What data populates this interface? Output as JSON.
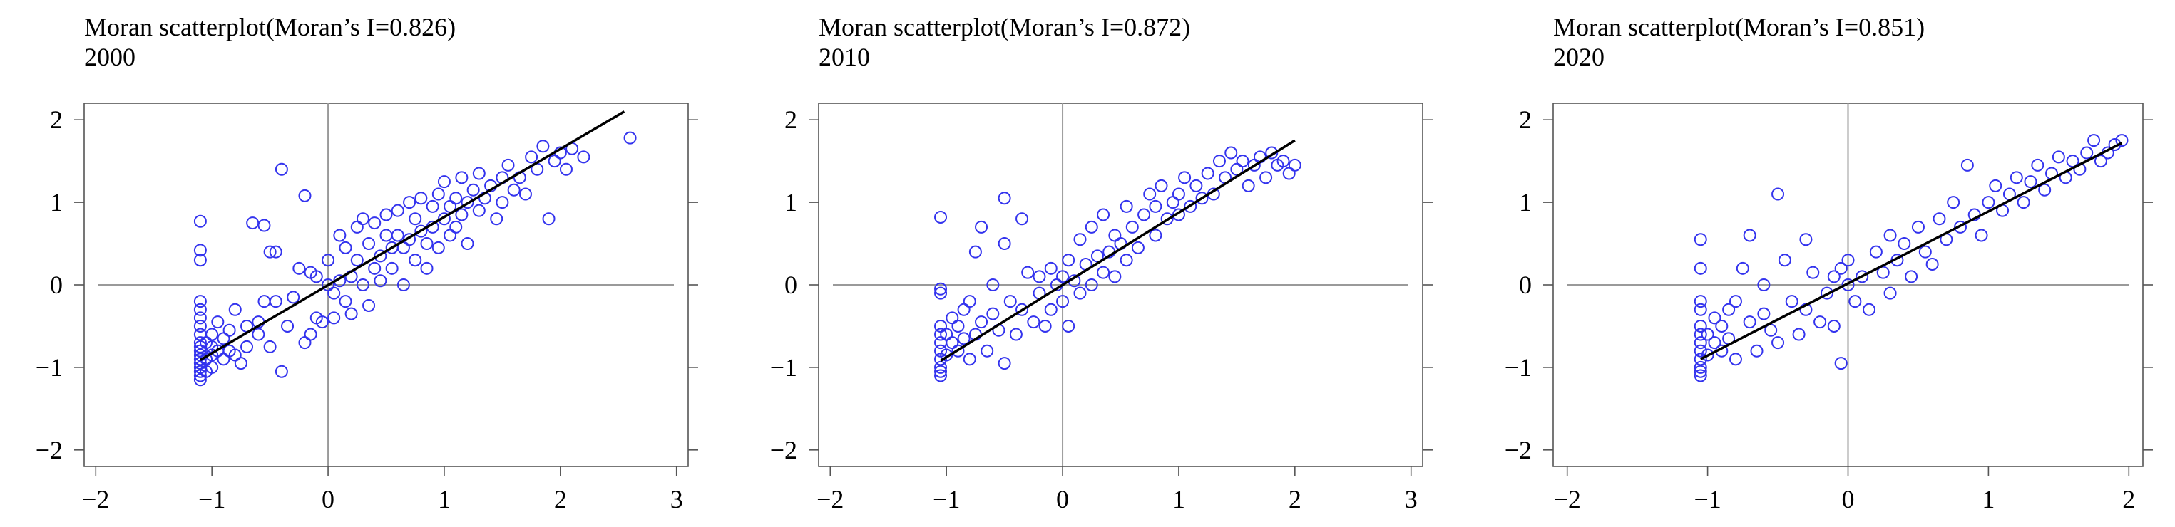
{
  "chart_data": [
    {
      "type": "scatter",
      "title": "Moran scatterplot(Moran’s I=0.826)",
      "subtitle": "2000",
      "xlabel": "",
      "ylabel": "",
      "xlim": [
        -2.1,
        3.1
      ],
      "ylim": [
        -2.2,
        2.2
      ],
      "xticks": [
        -2,
        -1,
        0,
        1,
        2,
        3
      ],
      "yticks": [
        -2,
        -1,
        0,
        1,
        2
      ],
      "grid": false,
      "marker_color": "#3333ee",
      "fit_line": {
        "x": [
          -1.1,
          2.55
        ],
        "y": [
          -0.91,
          2.1
        ]
      },
      "x_max_shown": 2.6,
      "points": [
        [
          -1.1,
          -0.75
        ],
        [
          -1.1,
          -0.8
        ],
        [
          -1.1,
          -0.85
        ],
        [
          -1.1,
          -0.9
        ],
        [
          -1.1,
          -0.95
        ],
        [
          -1.1,
          -1.0
        ],
        [
          -1.1,
          -1.05
        ],
        [
          -1.1,
          -1.1
        ],
        [
          -1.1,
          -1.15
        ],
        [
          -1.1,
          -0.7
        ],
        [
          -1.1,
          -0.6
        ],
        [
          -1.1,
          -0.5
        ],
        [
          -1.1,
          -0.4
        ],
        [
          -1.1,
          -0.3
        ],
        [
          -1.1,
          -0.2
        ],
        [
          -1.1,
          0.3
        ],
        [
          -1.1,
          0.42
        ],
        [
          -1.1,
          0.77
        ],
        [
          -1.05,
          -0.7
        ],
        [
          -1.05,
          -0.9
        ],
        [
          -1.05,
          -1.05
        ],
        [
          -1.0,
          -0.6
        ],
        [
          -1.0,
          -0.75
        ],
        [
          -1.0,
          -0.85
        ],
        [
          -1.0,
          -1.0
        ],
        [
          -0.95,
          -0.45
        ],
        [
          -0.95,
          -0.8
        ],
        [
          -0.9,
          -0.9
        ],
        [
          -0.9,
          -0.65
        ],
        [
          -0.85,
          -0.55
        ],
        [
          -0.85,
          -0.8
        ],
        [
          -0.8,
          -0.85
        ],
        [
          -0.8,
          -0.3
        ],
        [
          -0.75,
          -0.95
        ],
        [
          -0.7,
          -0.5
        ],
        [
          -0.7,
          -0.75
        ],
        [
          -0.65,
          0.75
        ],
        [
          -0.6,
          -0.45
        ],
        [
          -0.6,
          -0.6
        ],
        [
          -0.55,
          0.72
        ],
        [
          -0.55,
          -0.2
        ],
        [
          -0.5,
          0.4
        ],
        [
          -0.5,
          -0.75
        ],
        [
          -0.45,
          0.4
        ],
        [
          -0.45,
          -0.2
        ],
        [
          -0.4,
          -1.05
        ],
        [
          -0.4,
          1.4
        ],
        [
          -0.35,
          -0.5
        ],
        [
          -0.3,
          -0.15
        ],
        [
          -0.25,
          0.2
        ],
        [
          -0.2,
          -0.7
        ],
        [
          -0.2,
          1.08
        ],
        [
          -0.15,
          0.15
        ],
        [
          -0.15,
          -0.6
        ],
        [
          -0.1,
          -0.4
        ],
        [
          -0.1,
          0.1
        ],
        [
          -0.05,
          -0.45
        ],
        [
          0.0,
          0.0
        ],
        [
          0.0,
          0.3
        ],
        [
          0.05,
          -0.1
        ],
        [
          0.05,
          -0.4
        ],
        [
          0.1,
          0.05
        ],
        [
          0.1,
          0.6
        ],
        [
          0.15,
          -0.2
        ],
        [
          0.15,
          0.45
        ],
        [
          0.2,
          0.1
        ],
        [
          0.2,
          -0.35
        ],
        [
          0.25,
          0.3
        ],
        [
          0.25,
          0.7
        ],
        [
          0.3,
          0.0
        ],
        [
          0.3,
          0.8
        ],
        [
          0.35,
          0.5
        ],
        [
          0.35,
          -0.25
        ],
        [
          0.4,
          0.2
        ],
        [
          0.4,
          0.75
        ],
        [
          0.45,
          0.35
        ],
        [
          0.45,
          0.05
        ],
        [
          0.5,
          0.6
        ],
        [
          0.5,
          0.85
        ],
        [
          0.55,
          0.2
        ],
        [
          0.55,
          0.45
        ],
        [
          0.6,
          0.9
        ],
        [
          0.6,
          0.6
        ],
        [
          0.65,
          0.45
        ],
        [
          0.65,
          0.0
        ],
        [
          0.7,
          1.0
        ],
        [
          0.7,
          0.55
        ],
        [
          0.75,
          0.3
        ],
        [
          0.75,
          0.8
        ],
        [
          0.8,
          0.65
        ],
        [
          0.8,
          1.05
        ],
        [
          0.85,
          0.5
        ],
        [
          0.85,
          0.2
        ],
        [
          0.9,
          0.95
        ],
        [
          0.9,
          0.7
        ],
        [
          0.95,
          1.1
        ],
        [
          0.95,
          0.45
        ],
        [
          1.0,
          0.8
        ],
        [
          1.0,
          1.25
        ],
        [
          1.05,
          0.6
        ],
        [
          1.05,
          0.95
        ],
        [
          1.1,
          1.05
        ],
        [
          1.1,
          0.7
        ],
        [
          1.15,
          1.3
        ],
        [
          1.15,
          0.85
        ],
        [
          1.2,
          1.0
        ],
        [
          1.2,
          0.5
        ],
        [
          1.25,
          1.15
        ],
        [
          1.3,
          0.9
        ],
        [
          1.3,
          1.35
        ],
        [
          1.35,
          1.05
        ],
        [
          1.4,
          1.2
        ],
        [
          1.45,
          0.8
        ],
        [
          1.5,
          1.3
        ],
        [
          1.5,
          1.0
        ],
        [
          1.55,
          1.45
        ],
        [
          1.6,
          1.15
        ],
        [
          1.65,
          1.3
        ],
        [
          1.7,
          1.1
        ],
        [
          1.75,
          1.55
        ],
        [
          1.8,
          1.4
        ],
        [
          1.85,
          1.68
        ],
        [
          1.9,
          0.8
        ],
        [
          1.95,
          1.5
        ],
        [
          2.0,
          1.6
        ],
        [
          2.05,
          1.4
        ],
        [
          2.1,
          1.65
        ],
        [
          2.2,
          1.55
        ],
        [
          2.6,
          1.78
        ]
      ]
    },
    {
      "type": "scatter",
      "title": "Moran scatterplot(Moran’s I=0.872)",
      "subtitle": "2010",
      "xlabel": "",
      "ylabel": "",
      "xlim": [
        -2.1,
        3.1
      ],
      "ylim": [
        -2.2,
        2.2
      ],
      "xticks": [
        -2,
        -1,
        0,
        1,
        2,
        3
      ],
      "yticks": [
        -2,
        -1,
        0,
        1,
        2
      ],
      "grid": false,
      "marker_color": "#3333ee",
      "fit_line": {
        "x": [
          -1.05,
          2.0
        ],
        "y": [
          -0.92,
          1.75
        ]
      },
      "points": [
        [
          -1.05,
          -0.8
        ],
        [
          -1.05,
          -0.9
        ],
        [
          -1.05,
          -1.0
        ],
        [
          -1.05,
          -1.05
        ],
        [
          -1.05,
          -1.1
        ],
        [
          -1.05,
          -0.7
        ],
        [
          -1.05,
          -0.6
        ],
        [
          -1.05,
          -0.5
        ],
        [
          -1.05,
          -0.05
        ],
        [
          -1.05,
          -0.1
        ],
        [
          -1.05,
          0.82
        ],
        [
          -1.0,
          -0.6
        ],
        [
          -1.0,
          -0.85
        ],
        [
          -0.95,
          -0.4
        ],
        [
          -0.95,
          -0.7
        ],
        [
          -0.9,
          -0.5
        ],
        [
          -0.9,
          -0.8
        ],
        [
          -0.85,
          -0.3
        ],
        [
          -0.85,
          -0.65
        ],
        [
          -0.8,
          -0.9
        ],
        [
          -0.8,
          -0.2
        ],
        [
          -0.75,
          0.4
        ],
        [
          -0.75,
          -0.6
        ],
        [
          -0.7,
          0.7
        ],
        [
          -0.7,
          -0.45
        ],
        [
          -0.65,
          -0.8
        ],
        [
          -0.6,
          0.0
        ],
        [
          -0.6,
          -0.35
        ],
        [
          -0.55,
          -0.55
        ],
        [
          -0.5,
          1.05
        ],
        [
          -0.5,
          -0.95
        ],
        [
          -0.5,
          0.5
        ],
        [
          -0.45,
          -0.2
        ],
        [
          -0.4,
          -0.6
        ],
        [
          -0.35,
          0.8
        ],
        [
          -0.35,
          -0.3
        ],
        [
          -0.3,
          0.15
        ],
        [
          -0.25,
          -0.45
        ],
        [
          -0.2,
          -0.1
        ],
        [
          -0.2,
          0.1
        ],
        [
          -0.15,
          -0.5
        ],
        [
          -0.1,
          0.2
        ],
        [
          -0.1,
          -0.3
        ],
        [
          -0.05,
          0.0
        ],
        [
          0.0,
          0.1
        ],
        [
          0.0,
          -0.2
        ],
        [
          0.05,
          0.3
        ],
        [
          0.05,
          -0.5
        ],
        [
          0.1,
          0.05
        ],
        [
          0.15,
          0.55
        ],
        [
          0.15,
          -0.1
        ],
        [
          0.2,
          0.25
        ],
        [
          0.25,
          0.0
        ],
        [
          0.25,
          0.7
        ],
        [
          0.3,
          0.35
        ],
        [
          0.35,
          0.15
        ],
        [
          0.35,
          0.85
        ],
        [
          0.4,
          0.4
        ],
        [
          0.45,
          0.1
        ],
        [
          0.45,
          0.6
        ],
        [
          0.5,
          0.5
        ],
        [
          0.55,
          0.3
        ],
        [
          0.55,
          0.95
        ],
        [
          0.6,
          0.7
        ],
        [
          0.65,
          0.45
        ],
        [
          0.7,
          0.85
        ],
        [
          0.75,
          1.1
        ],
        [
          0.8,
          0.6
        ],
        [
          0.8,
          0.95
        ],
        [
          0.85,
          1.2
        ],
        [
          0.9,
          0.8
        ],
        [
          0.95,
          1.0
        ],
        [
          1.0,
          1.1
        ],
        [
          1.0,
          0.85
        ],
        [
          1.05,
          1.3
        ],
        [
          1.1,
          0.95
        ],
        [
          1.15,
          1.2
        ],
        [
          1.2,
          1.05
        ],
        [
          1.25,
          1.35
        ],
        [
          1.3,
          1.1
        ],
        [
          1.35,
          1.5
        ],
        [
          1.4,
          1.3
        ],
        [
          1.45,
          1.6
        ],
        [
          1.5,
          1.4
        ],
        [
          1.55,
          1.5
        ],
        [
          1.6,
          1.2
        ],
        [
          1.65,
          1.45
        ],
        [
          1.7,
          1.55
        ],
        [
          1.75,
          1.3
        ],
        [
          1.8,
          1.6
        ],
        [
          1.85,
          1.45
        ],
        [
          1.9,
          1.5
        ],
        [
          1.95,
          1.35
        ],
        [
          2.0,
          1.45
        ]
      ]
    },
    {
      "type": "scatter",
      "title": "Moran scatterplot(Moran’s I=0.851)",
      "subtitle": "2020",
      "xlabel": "",
      "ylabel": "",
      "xlim": [
        -2.1,
        2.1
      ],
      "ylim": [
        -2.2,
        2.2
      ],
      "xticks": [
        -2,
        -1,
        0,
        1,
        2
      ],
      "yticks": [
        -2,
        -1,
        0,
        1,
        2
      ],
      "grid": false,
      "marker_color": "#3333ee",
      "fit_line": {
        "x": [
          -1.05,
          1.95
        ],
        "y": [
          -0.9,
          1.72
        ]
      },
      "points": [
        [
          -1.05,
          -0.8
        ],
        [
          -1.05,
          -0.9
        ],
        [
          -1.05,
          -1.0
        ],
        [
          -1.05,
          -1.05
        ],
        [
          -1.05,
          -1.1
        ],
        [
          -1.05,
          -0.7
        ],
        [
          -1.05,
          -0.6
        ],
        [
          -1.05,
          -0.5
        ],
        [
          -1.05,
          -0.3
        ],
        [
          -1.05,
          -0.2
        ],
        [
          -1.05,
          0.2
        ],
        [
          -1.05,
          0.55
        ],
        [
          -1.0,
          -0.6
        ],
        [
          -1.0,
          -0.85
        ],
        [
          -0.95,
          -0.4
        ],
        [
          -0.95,
          -0.7
        ],
        [
          -0.9,
          -0.5
        ],
        [
          -0.9,
          -0.8
        ],
        [
          -0.85,
          -0.3
        ],
        [
          -0.85,
          -0.65
        ],
        [
          -0.8,
          -0.9
        ],
        [
          -0.8,
          -0.2
        ],
        [
          -0.75,
          0.2
        ],
        [
          -0.7,
          0.6
        ],
        [
          -0.7,
          -0.45
        ],
        [
          -0.65,
          -0.8
        ],
        [
          -0.6,
          0.0
        ],
        [
          -0.6,
          -0.35
        ],
        [
          -0.55,
          -0.55
        ],
        [
          -0.5,
          1.1
        ],
        [
          -0.5,
          -0.7
        ],
        [
          -0.45,
          0.3
        ],
        [
          -0.4,
          -0.2
        ],
        [
          -0.35,
          -0.6
        ],
        [
          -0.3,
          0.55
        ],
        [
          -0.3,
          -0.3
        ],
        [
          -0.25,
          0.15
        ],
        [
          -0.2,
          -0.45
        ],
        [
          -0.15,
          -0.1
        ],
        [
          -0.1,
          0.1
        ],
        [
          -0.1,
          -0.5
        ],
        [
          -0.05,
          0.2
        ],
        [
          -0.05,
          -0.95
        ],
        [
          0.0,
          0.0
        ],
        [
          0.0,
          0.3
        ],
        [
          0.05,
          -0.2
        ],
        [
          0.1,
          0.1
        ],
        [
          0.15,
          -0.3
        ],
        [
          0.2,
          0.4
        ],
        [
          0.25,
          0.15
        ],
        [
          0.3,
          -0.1
        ],
        [
          0.3,
          0.6
        ],
        [
          0.35,
          0.3
        ],
        [
          0.4,
          0.5
        ],
        [
          0.45,
          0.1
        ],
        [
          0.5,
          0.7
        ],
        [
          0.55,
          0.4
        ],
        [
          0.6,
          0.25
        ],
        [
          0.65,
          0.8
        ],
        [
          0.7,
          0.55
        ],
        [
          0.75,
          1.0
        ],
        [
          0.8,
          0.7
        ],
        [
          0.85,
          1.45
        ],
        [
          0.9,
          0.85
        ],
        [
          0.95,
          0.6
        ],
        [
          1.0,
          1.0
        ],
        [
          1.05,
          1.2
        ],
        [
          1.1,
          0.9
        ],
        [
          1.15,
          1.1
        ],
        [
          1.2,
          1.3
        ],
        [
          1.25,
          1.0
        ],
        [
          1.3,
          1.25
        ],
        [
          1.35,
          1.45
        ],
        [
          1.4,
          1.15
        ],
        [
          1.45,
          1.35
        ],
        [
          1.5,
          1.55
        ],
        [
          1.55,
          1.3
        ],
        [
          1.6,
          1.5
        ],
        [
          1.65,
          1.4
        ],
        [
          1.7,
          1.6
        ],
        [
          1.75,
          1.75
        ],
        [
          1.8,
          1.5
        ],
        [
          1.85,
          1.6
        ],
        [
          1.9,
          1.7
        ],
        [
          1.95,
          1.75
        ]
      ]
    }
  ]
}
